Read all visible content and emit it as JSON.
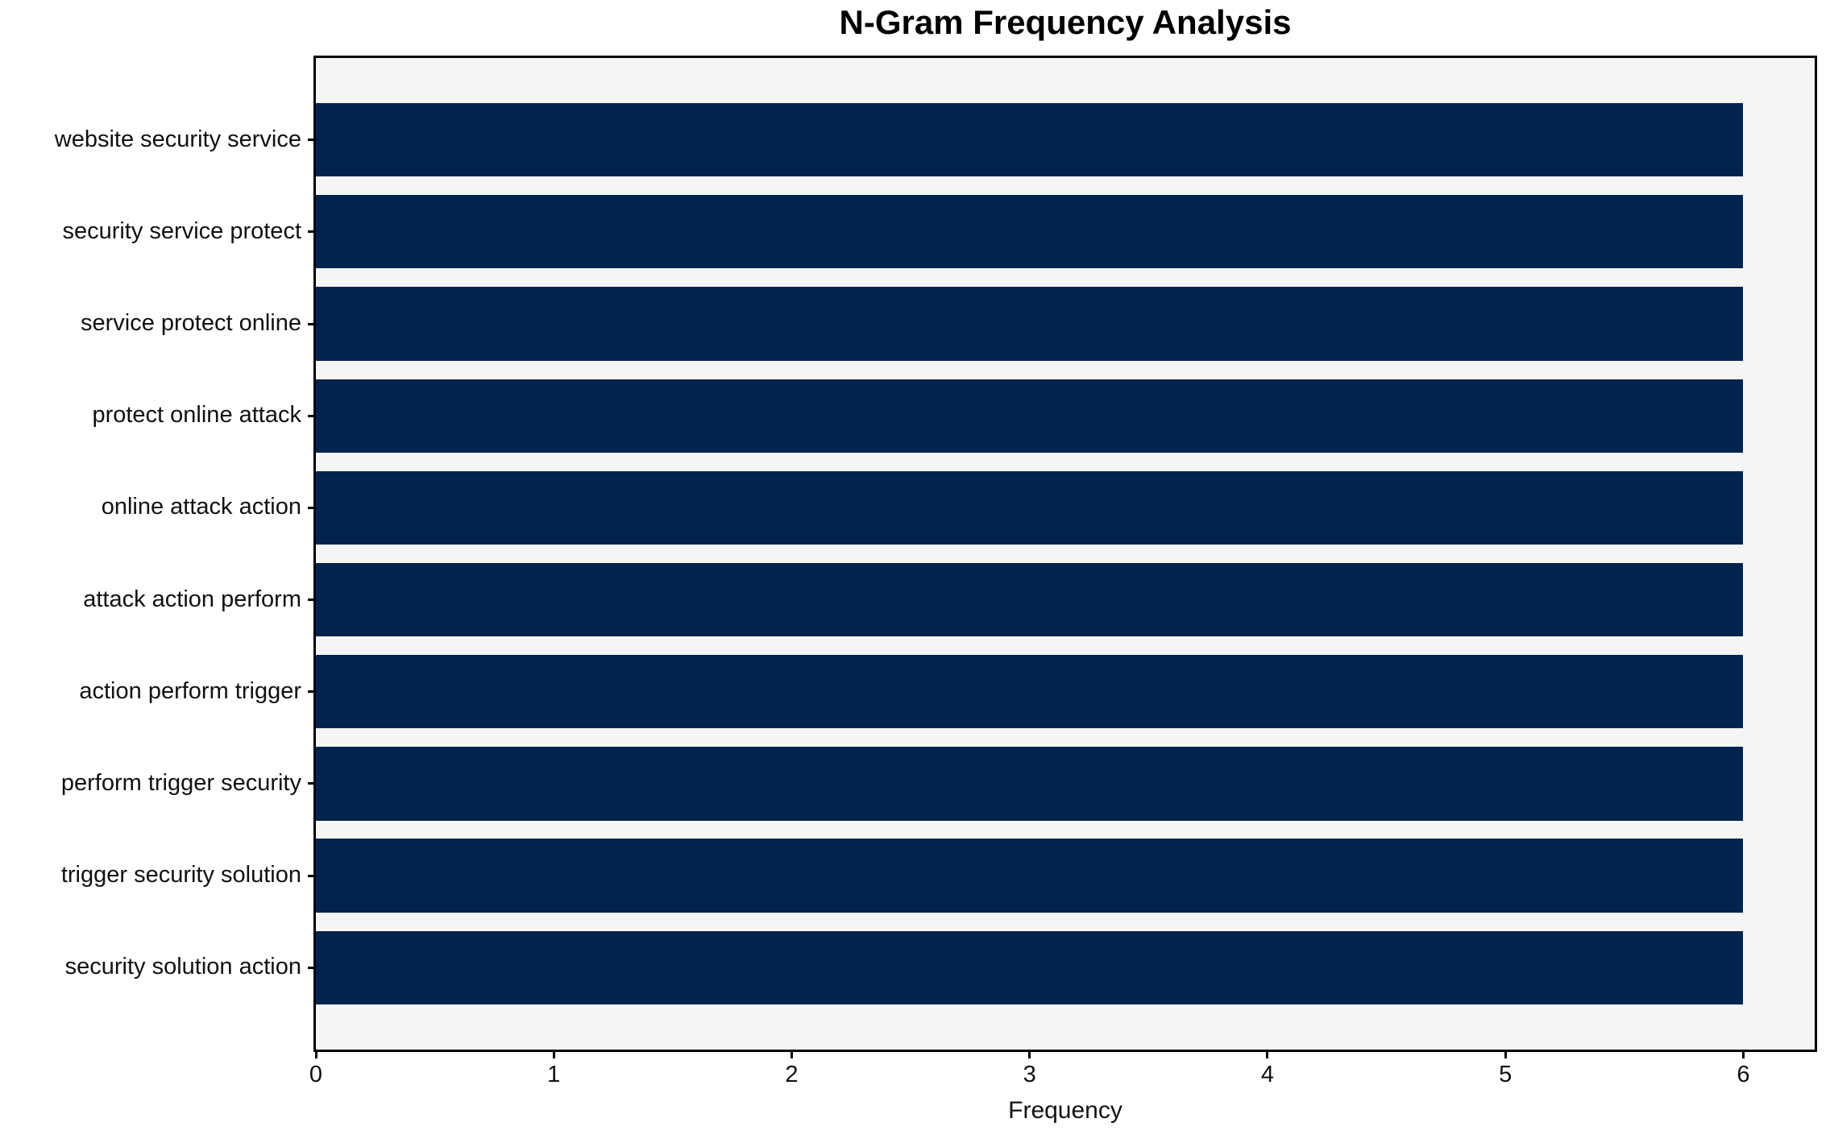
{
  "chart_data": {
    "type": "bar",
    "orientation": "horizontal",
    "title": "N-Gram Frequency Analysis",
    "xlabel": "Frequency",
    "ylabel": "",
    "categories": [
      "website security service",
      "security service protect",
      "service protect online",
      "protect online attack",
      "online attack action",
      "attack action perform",
      "action perform trigger",
      "perform trigger security",
      "trigger security solution",
      "security solution action"
    ],
    "values": [
      6,
      6,
      6,
      6,
      6,
      6,
      6,
      6,
      6,
      6
    ],
    "xticks": [
      0,
      1,
      2,
      3,
      4,
      5,
      6
    ],
    "xlim": [
      0,
      6.3
    ],
    "grid": false,
    "legend": null,
    "colors": {
      "bar": "#02234D",
      "plot_background": "#F5F5F6",
      "figure_background": "#FFFFFF",
      "spine": "#000000",
      "text": "#111111"
    }
  }
}
